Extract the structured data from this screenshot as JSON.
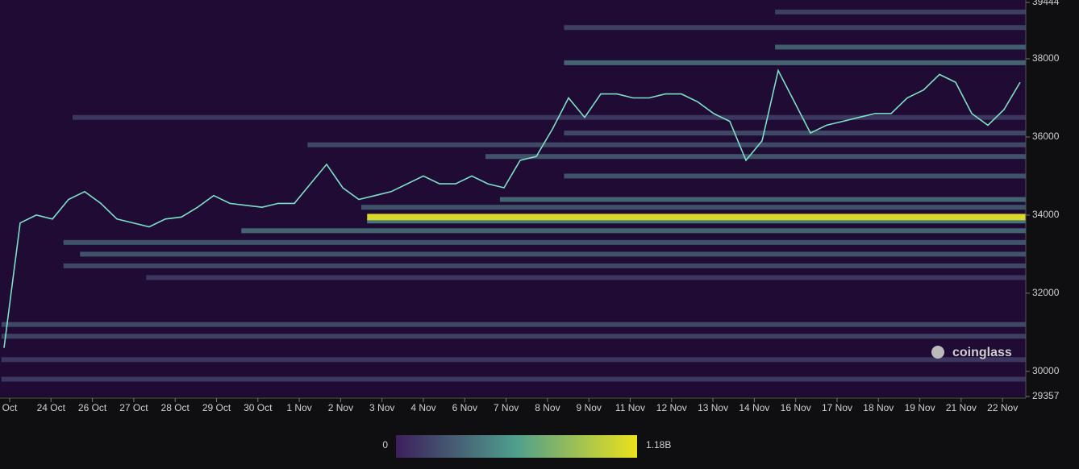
{
  "chart_data": {
    "type": "heatmap",
    "watermark": "coinglass",
    "categories": [
      "Oct",
      "24 Oct",
      "26 Oct",
      "27 Oct",
      "28 Oct",
      "29 Oct",
      "30 Oct",
      "1 Nov",
      "2 Nov",
      "3 Nov",
      "4 Nov",
      "6 Nov",
      "7 Nov",
      "8 Nov",
      "9 Nov",
      "11 Nov",
      "12 Nov",
      "13 Nov",
      "14 Nov",
      "16 Nov",
      "17 Nov",
      "18 Nov",
      "19 Nov",
      "21 Nov",
      "22 Nov"
    ],
    "ylim": [
      29357,
      39444
    ],
    "yticks": [
      39444,
      38000,
      36000,
      34000,
      32000,
      30000,
      29357
    ],
    "colorbar": {
      "min": 0,
      "max": {
        "value": 1180000000,
        "label": "1.18B"
      },
      "colors": [
        "#3d1f5c",
        "#4f9f8c",
        "#ece11c"
      ]
    },
    "background": "#1f0b33",
    "bands": [
      {
        "price": 31200,
        "start": -0.2,
        "value": 250000000
      },
      {
        "price": 30900,
        "start": -0.2,
        "value": 200000000
      },
      {
        "price": 30300,
        "start": -0.2,
        "value": 150000000
      },
      {
        "price": 29800,
        "start": -0.2,
        "value": 150000000
      },
      {
        "price": 32400,
        "start": 3.3,
        "value": 150000000
      },
      {
        "price": 32700,
        "start": 1.3,
        "value": 250000000
      },
      {
        "price": 33000,
        "start": 1.7,
        "value": 300000000
      },
      {
        "price": 33300,
        "start": 1.3,
        "value": 300000000
      },
      {
        "price": 33600,
        "start": 5.6,
        "value": 400000000
      },
      {
        "price": 33850,
        "start": 8.64,
        "value": 500000000
      },
      {
        "price": 34200,
        "start": 8.5,
        "value": 300000000
      },
      {
        "price": 34400,
        "start": 11.85,
        "value": 400000000
      },
      {
        "price": 35000,
        "start": 13.4,
        "value": 300000000
      },
      {
        "price": 35500,
        "start": 11.5,
        "value": 300000000
      },
      {
        "price": 35800,
        "start": 7.2,
        "value": 250000000
      },
      {
        "price": 36100,
        "start": 13.4,
        "value": 250000000
      },
      {
        "price": 36500,
        "start": 1.52,
        "value": 150000000
      },
      {
        "price": 37900,
        "start": 13.4,
        "value": 400000000
      },
      {
        "price": 38300,
        "start": 18.5,
        "value": 350000000
      },
      {
        "price": 38800,
        "start": 13.4,
        "value": 200000000
      },
      {
        "price": 39200,
        "start": 18.5,
        "value": 200000000
      },
      {
        "price": 33950,
        "start": 8.64,
        "value": 1100000000
      }
    ],
    "price": {
      "color": "#7fe0c8",
      "values": [
        30600,
        33800,
        34000,
        33900,
        34400,
        34600,
        34300,
        33900,
        33800,
        33700,
        33900,
        33950,
        34200,
        34500,
        34300,
        34250,
        34200,
        34300,
        34300,
        34800,
        35300,
        34700,
        34400,
        34500,
        34600,
        34800,
        35000,
        34800,
        34800,
        35000,
        34800,
        34700,
        35400,
        35500,
        36200,
        37000,
        36500,
        37100,
        37100,
        37000,
        37000,
        37100,
        37100,
        36900,
        36600,
        36400,
        35400,
        35900,
        37700,
        36900,
        36100,
        36300,
        36400,
        36500,
        36600,
        36600,
        37000,
        37200,
        37600,
        37400,
        36600,
        36300,
        36700,
        37400
      ]
    }
  }
}
